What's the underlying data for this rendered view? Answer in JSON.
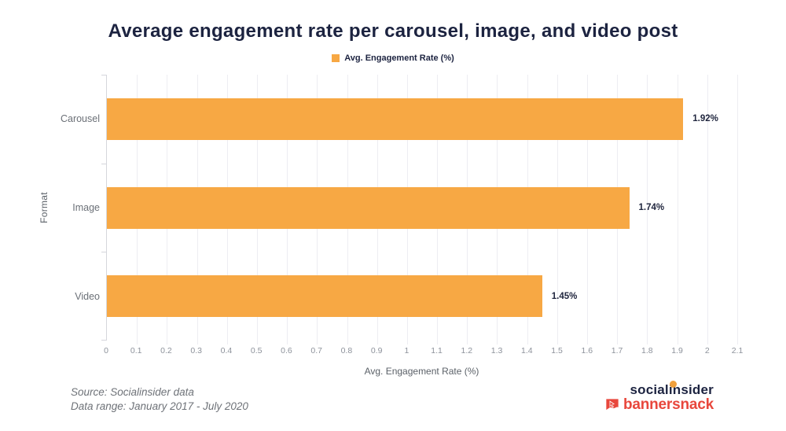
{
  "title": "Average engagement rate per carousel, image, and video post",
  "legend": {
    "label": "Avg. Engagement Rate (%)"
  },
  "chart_data": {
    "type": "bar",
    "orientation": "horizontal",
    "title": "Average engagement rate per carousel, image, and video post",
    "categories": [
      "Carousel",
      "Image",
      "Video"
    ],
    "values": [
      1.92,
      1.74,
      1.45
    ],
    "value_labels": [
      "1.92%",
      "1.74%",
      "1.45%"
    ],
    "series_name": "Avg. Engagement Rate (%)",
    "xlabel": "Avg. Engagement Rate (%)",
    "ylabel": "Format",
    "xlim": [
      0,
      2.1
    ],
    "xticks": [
      0,
      0.1,
      0.2,
      0.3,
      0.4,
      0.5,
      0.6,
      0.7,
      0.8,
      0.9,
      1,
      1.1,
      1.2,
      1.3,
      1.4,
      1.5,
      1.6,
      1.7,
      1.8,
      1.9,
      2,
      2.1
    ],
    "xtick_labels": [
      "0",
      "0.1",
      "0.2",
      "0.3",
      "0.4",
      "0.5",
      "0.6",
      "0.7",
      "0.8",
      "0.9",
      "1",
      "1.1",
      "1.2",
      "1.3",
      "1.4",
      "1.5",
      "1.6",
      "1.7",
      "1.8",
      "1.9",
      "2",
      "2.1"
    ],
    "legend_position": "top",
    "grid": true,
    "colors": {
      "bar": "#F7A844",
      "grid": "#EDEDF2",
      "axis": "#D5D6DC",
      "navy": "#1C2340",
      "value_text": "#20263E",
      "dot_orange": "#F0A03C",
      "red": "#E8473C"
    }
  },
  "footer": {
    "source_line1": "Source: Socialinsider data",
    "source_line2": "Data range: January 2017 - July 2020",
    "socialinsider_label": "socialinsider",
    "bannersnack_label": "bannersnack"
  }
}
